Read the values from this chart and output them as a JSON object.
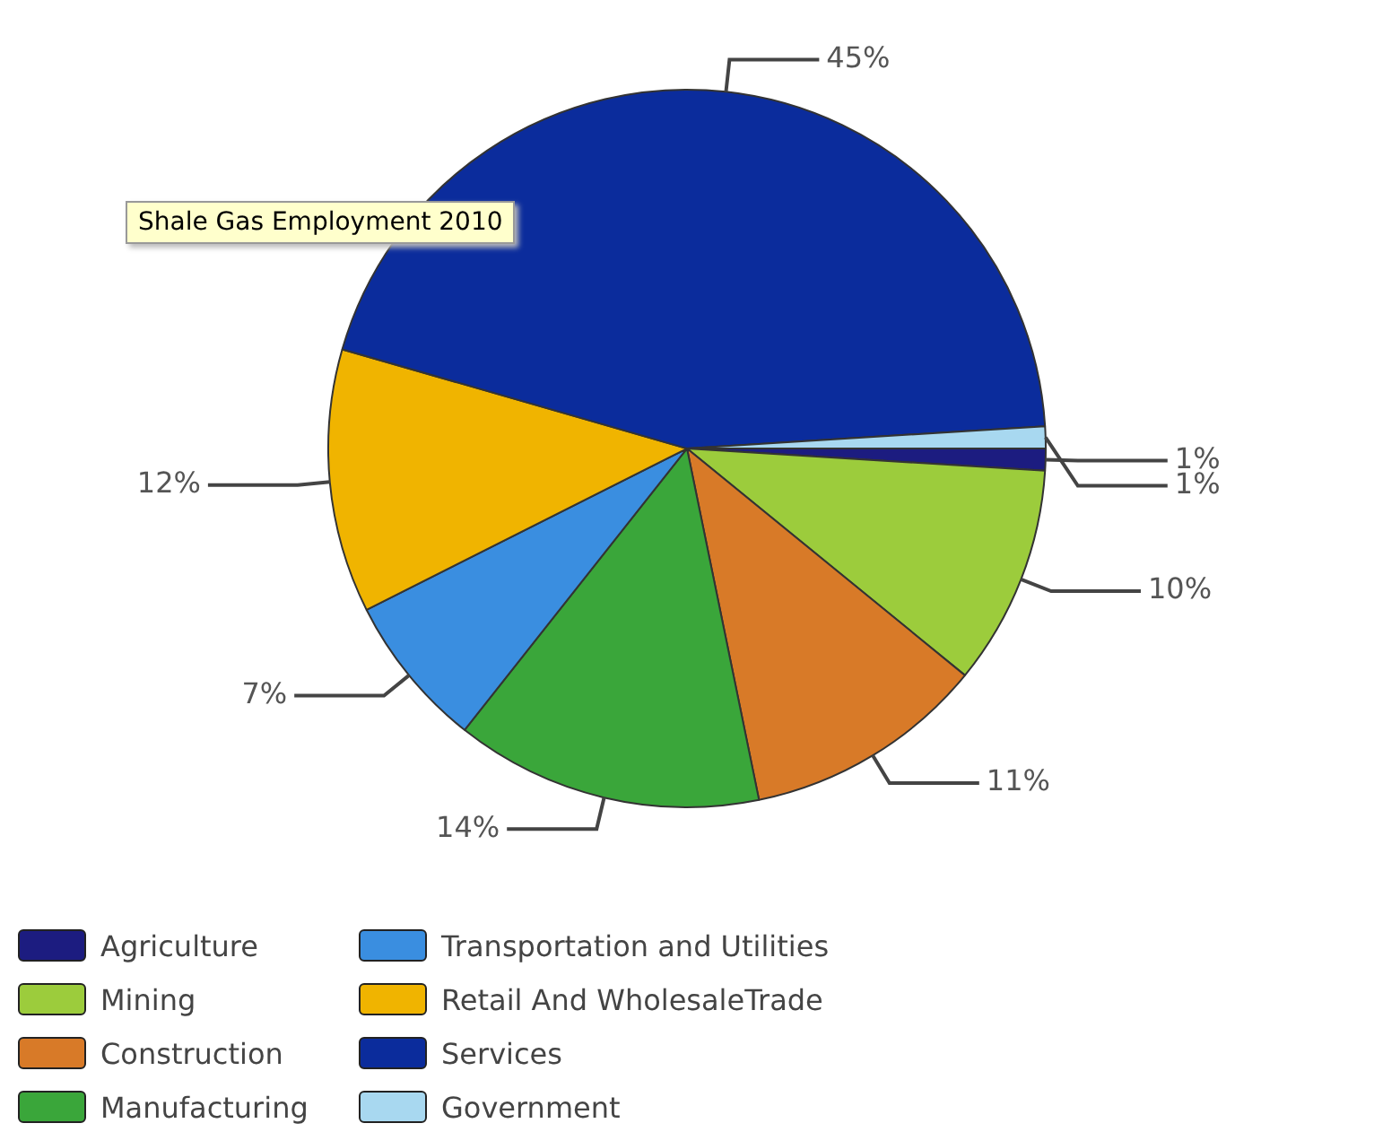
{
  "chart_data": {
    "type": "pie",
    "title": "Shale Gas Employment 2010",
    "categories": [
      "Agriculture",
      "Mining",
      "Construction",
      "Manufacturing",
      "Transportation and Utilities",
      "Retail And WholesaleTrade",
      "Services",
      "Government"
    ],
    "values": [
      1,
      10,
      11,
      14,
      7,
      12,
      45,
      1
    ],
    "colors": [
      "#1c1c80",
      "#9ccc3c",
      "#d87a28",
      "#3aa63a",
      "#3a8ee0",
      "#f0b400",
      "#0b2c9c",
      "#a8d8f0"
    ],
    "value_labels": [
      "1%",
      "10%",
      "11%",
      "14%",
      "7%",
      "12%",
      "45%",
      "1%"
    ],
    "legend": "bottom"
  }
}
